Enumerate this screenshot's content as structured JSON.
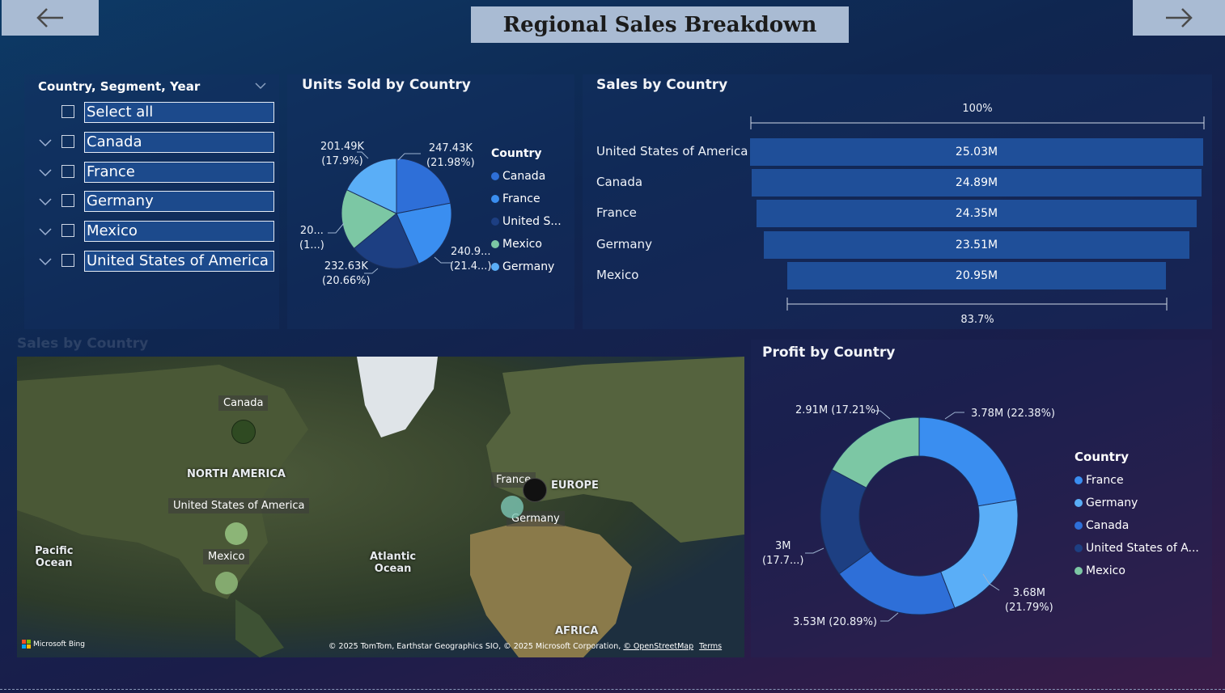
{
  "header": {
    "title": "Regional Sales Breakdown",
    "back_icon": "arrow-left-icon",
    "forward_icon": "arrow-right-icon"
  },
  "slicer": {
    "title": "Country, Segment, Year",
    "items": [
      {
        "label": "Select all",
        "expandable": false
      },
      {
        "label": "Canada",
        "expandable": true
      },
      {
        "label": "France",
        "expandable": true
      },
      {
        "label": "Germany",
        "expandable": true
      },
      {
        "label": "Mexico",
        "expandable": true
      },
      {
        "label": "United States of America",
        "expandable": true
      }
    ]
  },
  "units_chart": {
    "title": "Units Sold by Country",
    "legend_title": "Country",
    "legend": [
      "Canada",
      "France",
      "United S...",
      "Mexico",
      "Germany"
    ],
    "labels": {
      "canada": [
        "247.43K",
        "(21.98%)"
      ],
      "france": [
        "240.9...",
        "(21.4...)"
      ],
      "usa": [
        "232.63K",
        "(20.66%)"
      ],
      "mexico": [
        "20...",
        "(1...)"
      ],
      "germany": [
        "201.49K",
        "(17.9%)"
      ]
    }
  },
  "sales_chart": {
    "title": "Sales by Country",
    "top_pct": "100%",
    "bottom_pct": "83.7%"
  },
  "map_visual": {
    "title": "Sales by Country",
    "labels": {
      "north_america": "NORTH AMERICA",
      "europe": "EUROPE",
      "africa": "AFRICA",
      "pacific": "Pacific\nOcean",
      "atlantic": "Atlantic\nOcean"
    },
    "tags": {
      "canada": "Canada",
      "usa": "United States of America",
      "mexico": "Mexico",
      "france": "France",
      "germany": "Germany"
    },
    "bing": "Microsoft Bing",
    "attribution": "© 2025 TomTom, Earthstar Geographics SIO, © 2025 Microsoft Corporation,",
    "osm": "© OpenStreetMap",
    "terms": "Terms"
  },
  "profit_chart": {
    "title": "Profit by Country",
    "legend_title": "Country",
    "legend": [
      "France",
      "Germany",
      "Canada",
      "United States of A...",
      "Mexico"
    ],
    "labels": {
      "france": "3.78M (22.38%)",
      "germany": [
        "3.68M",
        "(21.79%)"
      ],
      "canada": "3.53M (20.89%)",
      "usa": [
        "3M",
        "(17.7...)"
      ],
      "mexico": "2.91M (17.21%)"
    }
  },
  "colors": {
    "canada": "#2e6fd8",
    "france": "#3a8ef0",
    "usa": "#1d3f82",
    "mexico": "#7cc7a4",
    "germany": "#5aaef7"
  },
  "chart_data": [
    {
      "type": "pie",
      "title": "Units Sold by Country",
      "categories": [
        "Canada",
        "France",
        "United States of America",
        "Mexico",
        "Germany"
      ],
      "values": [
        247.43,
        240.9,
        232.63,
        203.3,
        201.49
      ],
      "unit": "K",
      "percents": [
        21.98,
        21.4,
        20.66,
        18.06,
        17.9
      ]
    },
    {
      "type": "bar",
      "title": "Sales by Country",
      "categories": [
        "United States of America",
        "Canada",
        "France",
        "Germany",
        "Mexico"
      ],
      "values": [
        25.03,
        24.89,
        24.35,
        23.51,
        20.95
      ],
      "value_labels": [
        "25.03M",
        "24.89M",
        "24.35M",
        "23.51M",
        "20.95M"
      ],
      "unit": "M"
    },
    {
      "type": "pie",
      "title": "Profit by Country",
      "donut": true,
      "categories": [
        "France",
        "Germany",
        "Canada",
        "United States of America",
        "Mexico"
      ],
      "values": [
        3.78,
        3.68,
        3.53,
        3.0,
        2.91
      ],
      "unit": "M",
      "percents": [
        22.38,
        21.79,
        20.89,
        17.73,
        17.21
      ]
    }
  ]
}
